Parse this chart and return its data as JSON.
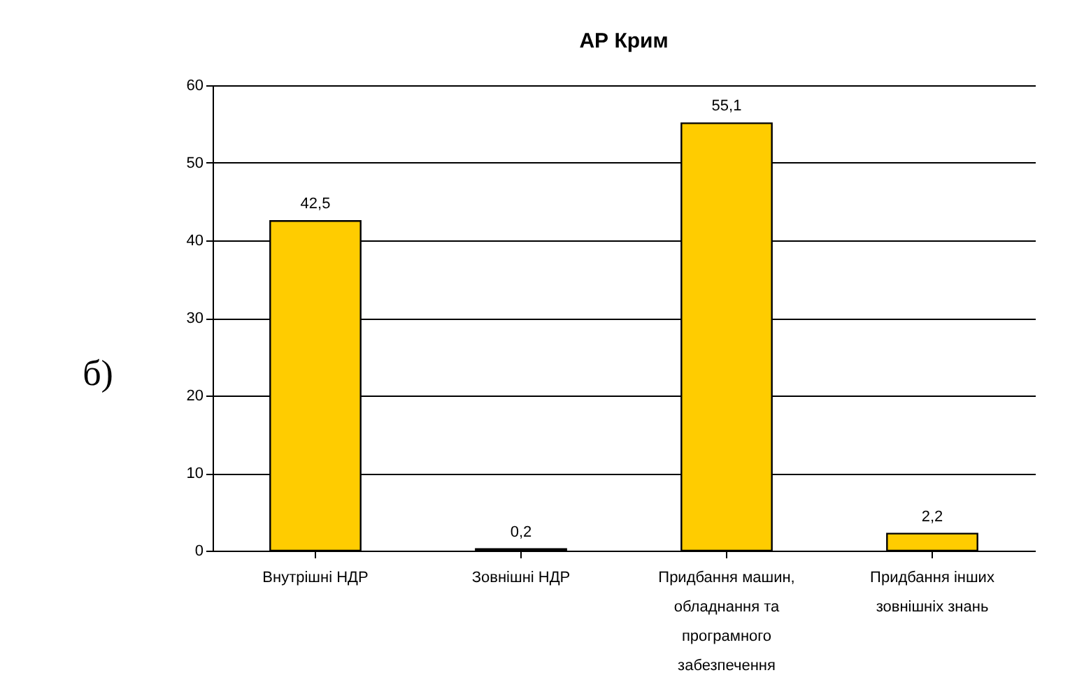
{
  "chart_data": {
    "type": "bar",
    "title": "АР Крим",
    "categories": [
      "Внутрішні НДР",
      "Зовнішні НДР",
      "Придбання машин, обладнання та програмного забезпечення",
      "Придбання інших зовнішніх знань"
    ],
    "values": [
      42.5,
      0.2,
      55.1,
      2.2
    ],
    "color": "#ffcc00",
    "ylim": [
      0,
      60
    ],
    "yticks": [
      0,
      10,
      20,
      30,
      40,
      50,
      60
    ],
    "grid": "y",
    "data_labels": true,
    "value_labels": [
      "42,5",
      "0,2",
      "55,1",
      "2,2"
    ],
    "annotations": [
      "б)"
    ]
  }
}
